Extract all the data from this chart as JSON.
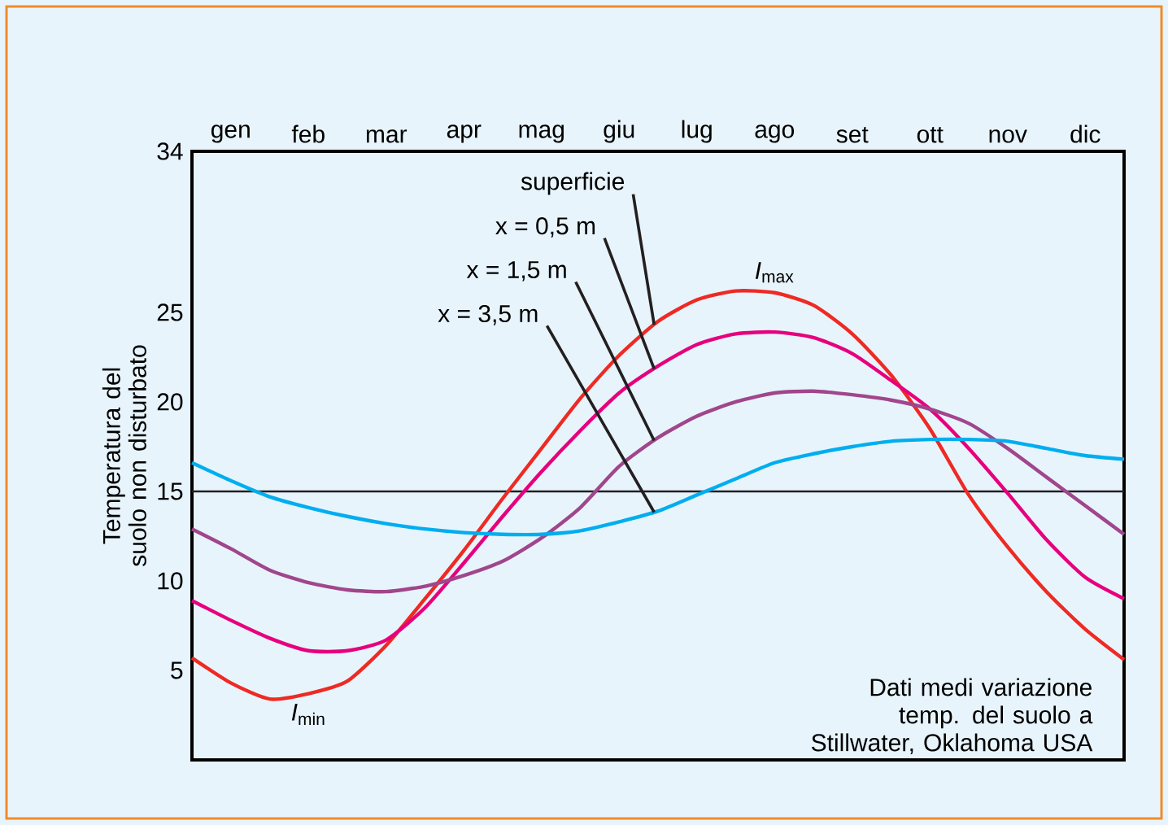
{
  "chart_data": {
    "type": "line",
    "ylabel": "Temperatura del suolo non disturbato",
    "categories": [
      null,
      "gen",
      null,
      "feb",
      null,
      "mar",
      null,
      "apr",
      null,
      "mag",
      null,
      "giu",
      null,
      "lug",
      null,
      "ago",
      null,
      "set",
      null,
      "ott",
      null,
      "nov",
      null,
      "dic",
      null
    ],
    "ylim": [
      0,
      34
    ],
    "yticks": [
      5,
      10,
      15,
      20,
      25,
      34
    ],
    "grid": false,
    "series": [
      {
        "name": "superficie",
        "color": "#ee2a24",
        "values": [
          5.7,
          4.3,
          3.4,
          3.7,
          4.4,
          6.4,
          9.0,
          11.7,
          14.6,
          17.4,
          20.2,
          22.6,
          24.5,
          25.7,
          26.2,
          26.1,
          25.4,
          23.8,
          21.5,
          18.5,
          14.8,
          11.9,
          9.4,
          7.3,
          5.6
        ]
      },
      {
        "name": "x = 0,5 m",
        "color": "#e6007e",
        "values": [
          8.9,
          7.8,
          6.8,
          6.1,
          6.1,
          6.7,
          8.5,
          11.0,
          13.6,
          16.1,
          18.4,
          20.5,
          22.0,
          23.2,
          23.8,
          23.9,
          23.6,
          22.7,
          21.2,
          19.6,
          17.4,
          14.9,
          12.3,
          10.2,
          9.0
        ]
      },
      {
        "name": "x = 1,5 m",
        "color": "#a0468c",
        "values": [
          12.9,
          11.8,
          10.6,
          9.9,
          9.5,
          9.4,
          9.7,
          10.3,
          11.1,
          12.4,
          14.1,
          16.4,
          18.0,
          19.2,
          20.0,
          20.5,
          20.6,
          20.4,
          20.1,
          19.6,
          18.8,
          17.4,
          15.8,
          14.2,
          12.6
        ]
      },
      {
        "name": "x = 3,5 m",
        "color": "#00aeef",
        "values": [
          16.6,
          15.6,
          14.7,
          14.1,
          13.6,
          13.2,
          12.9,
          12.7,
          12.6,
          12.6,
          12.8,
          13.3,
          13.9,
          14.8,
          15.7,
          16.6,
          17.1,
          17.5,
          17.8,
          17.9,
          17.9,
          17.8,
          17.4,
          17.0,
          16.8
        ]
      }
    ],
    "ref_lines": [
      {
        "axis": "y",
        "value": 15,
        "color": "#231f20"
      }
    ],
    "annotations": [
      {
        "text": "*I*$_{max}$",
        "x": "ago",
        "y": 26.1
      },
      {
        "text": "*I*$_{min}$",
        "x": "feb",
        "y": 3.7
      },
      "Dati medi variazione temp. del suolo a Stillwater, Oklahoma USA"
    ]
  }
}
